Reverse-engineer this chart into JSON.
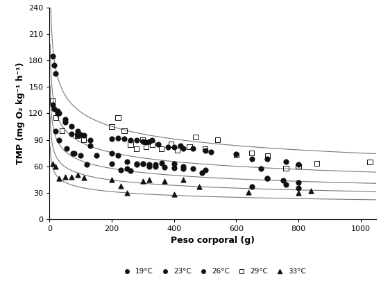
{
  "title": "",
  "xlabel": "Peso corporal (g)",
  "ylabel": "TMP (mg O₂ kg⁻¹ h⁻¹)",
  "xlim": [
    0,
    1050
  ],
  "ylim": [
    0,
    240
  ],
  "xticks": [
    0,
    200,
    400,
    600,
    800,
    1000
  ],
  "yticks": [
    0,
    30,
    60,
    90,
    120,
    150,
    180,
    210,
    240
  ],
  "curves": [
    {
      "a": 320.0,
      "b": -0.21,
      "color": "#777777"
    },
    {
      "a": 230.0,
      "b": -0.21,
      "color": "#777777"
    },
    {
      "a": 175.0,
      "b": -0.21,
      "color": "#777777"
    },
    {
      "a": 135.0,
      "b": -0.21,
      "color": "#777777"
    },
    {
      "a": 95.0,
      "b": -0.21,
      "color": "#777777"
    }
  ],
  "series": [
    {
      "label": "19°C",
      "marker": "o",
      "fillstyle": "full",
      "color": "#111111",
      "ms": 3.5,
      "x": [
        15,
        20,
        25,
        30,
        50,
        70,
        90,
        110,
        130,
        200,
        220,
        240,
        260,
        280,
        300,
        310,
        320,
        330,
        350,
        380,
        400,
        420,
        430,
        460,
        500,
        520,
        600,
        650,
        700,
        760,
        800
      ],
      "y": [
        175,
        165,
        120,
        120,
        110,
        105,
        100,
        95,
        90,
        91,
        92,
        91,
        90,
        90,
        88,
        87,
        88,
        90,
        85,
        82,
        82,
        83,
        80,
        80,
        78,
        76,
        74,
        68,
        68,
        65,
        62
      ]
    },
    {
      "label": "23°C",
      "marker": "o",
      "fillstyle": "full",
      "color": "#111111",
      "ms": 3.5,
      "x": [
        10,
        15,
        25,
        50,
        70,
        90,
        100,
        130,
        150,
        200,
        220,
        250,
        280,
        300,
        320,
        340,
        360,
        400,
        430,
        460,
        490,
        680,
        700,
        750,
        800
      ],
      "y": [
        185,
        125,
        123,
        113,
        97,
        95,
        96,
        83,
        72,
        75,
        72,
        65,
        63,
        63,
        62,
        62,
        64,
        63,
        60,
        57,
        53,
        57,
        46,
        44,
        42
      ]
    },
    {
      "label": "26°C",
      "marker": "o",
      "fillstyle": "full",
      "color": "#111111",
      "ms": 3.5,
      "x": [
        10,
        20,
        30,
        55,
        75,
        80,
        100,
        120,
        200,
        230,
        250,
        260,
        280,
        300,
        320,
        340,
        370,
        400,
        430,
        500,
        650,
        700,
        760,
        800
      ],
      "y": [
        130,
        100,
        90,
        80,
        75,
        75,
        72,
        62,
        63,
        56,
        57,
        55,
        62,
        63,
        60,
        60,
        59,
        58,
        57,
        56,
        37,
        46,
        39,
        35
      ]
    },
    {
      "label": "29°C",
      "marker": "s",
      "fillstyle": "none",
      "color": "#111111",
      "ms": 3.5,
      "x": [
        10,
        20,
        40,
        90,
        110,
        200,
        220,
        240,
        260,
        280,
        300,
        310,
        330,
        360,
        390,
        410,
        450,
        470,
        500,
        540,
        600,
        650,
        700,
        760,
        800,
        860,
        1030
      ],
      "y": [
        135,
        115,
        100,
        95,
        90,
        105,
        115,
        100,
        85,
        80,
        90,
        82,
        85,
        80,
        85,
        78,
        82,
        93,
        80,
        90,
        73,
        75,
        72,
        58,
        60,
        63,
        65
      ]
    },
    {
      "label": "33°C",
      "marker": "^",
      "fillstyle": "full",
      "color": "#111111",
      "ms": 3.5,
      "x": [
        10,
        20,
        30,
        50,
        70,
        90,
        110,
        200,
        230,
        250,
        300,
        320,
        370,
        400,
        430,
        480,
        640,
        800,
        840
      ],
      "y": [
        63,
        60,
        46,
        48,
        48,
        50,
        47,
        45,
        38,
        30,
        43,
        45,
        43,
        28,
        45,
        37,
        31,
        30,
        32
      ]
    }
  ],
  "legend": {
    "labels": [
      "19°C",
      "23°C",
      "26°C",
      "29°C",
      "33°C"
    ],
    "markers": [
      "o",
      "o",
      "o",
      "s",
      "^"
    ],
    "fillstyles": [
      "full",
      "full",
      "full",
      "none",
      "full"
    ]
  },
  "background_color": "#ffffff",
  "tick_fontsize": 8,
  "label_fontsize": 9
}
